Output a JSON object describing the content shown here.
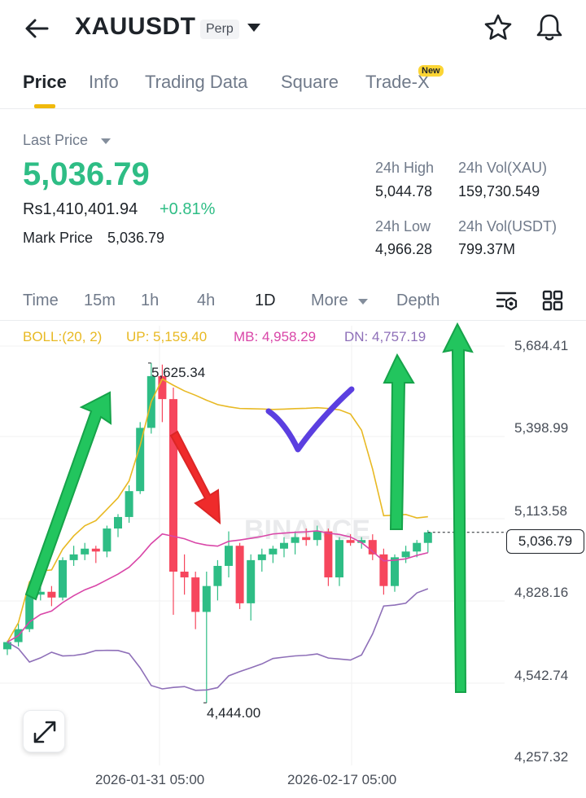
{
  "header": {
    "symbol": "XAUUSDT",
    "badge": "Perp"
  },
  "tabs": [
    {
      "label": "Price"
    },
    {
      "label": "Info"
    },
    {
      "label": "Trading Data"
    },
    {
      "label": "Square"
    },
    {
      "label": "Trade-X",
      "badge": "New"
    }
  ],
  "price": {
    "last_label": "Last Price",
    "last_value": "5,036.79",
    "fiat_value": "Rs1,410,401.94",
    "change_pct": "+0.81%",
    "mark_label": "Mark Price",
    "mark_value": "5,036.79"
  },
  "stats": {
    "high_label": "24h High",
    "high_value": "5,044.78",
    "volxau_label": "24h Vol(XAU)",
    "volxau_value": "159,730.549",
    "low_label": "24h Low",
    "low_value": "4,966.28",
    "volusdt_label": "24h Vol(USDT)",
    "volusdt_value": "799.37M"
  },
  "intervals": [
    {
      "label": "Time"
    },
    {
      "label": "15m"
    },
    {
      "label": "1h"
    },
    {
      "label": "4h"
    },
    {
      "label": "1D"
    },
    {
      "label": "More"
    },
    {
      "label": "Depth"
    }
  ],
  "boll": {
    "name": "BOLL:(20, 2)",
    "up": "UP: 5,159.40",
    "mb": "MB: 4,958.29",
    "dn": "DN: 4,757.19"
  },
  "colors": {
    "up": "#2ebd85",
    "down": "#f6465d",
    "boll_up": "#e8b923",
    "boll_mb": "#d946a8",
    "boll_dn": "#8e6fb8",
    "accent": "#f0b90b"
  },
  "chart_data": {
    "type": "candlestick",
    "y_ticks": [
      "5,684.41",
      "5,398.99",
      "5,113.58",
      "4,828.16",
      "4,542.74",
      "4,257.32"
    ],
    "x_ticks": [
      "2026-01-31 05:00",
      "2026-02-17 05:00"
    ],
    "watermark": "BINANCE",
    "high_label": "5,625.34",
    "low_label": "4,444.00",
    "current_price": "5,036.79",
    "candles": [
      {
        "o": 4630,
        "h": 4660,
        "l": 4610,
        "c": 4655
      },
      {
        "o": 4655,
        "h": 4720,
        "l": 4640,
        "c": 4700
      },
      {
        "o": 4700,
        "h": 4830,
        "l": 4690,
        "c": 4820
      },
      {
        "o": 4820,
        "h": 4900,
        "l": 4800,
        "c": 4830
      },
      {
        "o": 4830,
        "h": 4850,
        "l": 4780,
        "c": 4810
      },
      {
        "o": 4810,
        "h": 4950,
        "l": 4800,
        "c": 4940
      },
      {
        "o": 4940,
        "h": 4990,
        "l": 4920,
        "c": 4960
      },
      {
        "o": 4960,
        "h": 5000,
        "l": 4940,
        "c": 4980
      },
      {
        "o": 4980,
        "h": 4990,
        "l": 4930,
        "c": 4970
      },
      {
        "o": 4970,
        "h": 5060,
        "l": 4950,
        "c": 5050
      },
      {
        "o": 5050,
        "h": 5100,
        "l": 5020,
        "c": 5090
      },
      {
        "o": 5090,
        "h": 5200,
        "l": 5070,
        "c": 5180
      },
      {
        "o": 5180,
        "h": 5420,
        "l": 5170,
        "c": 5400
      },
      {
        "o": 5400,
        "h": 5625.34,
        "l": 5380,
        "c": 5580
      },
      {
        "o": 5580,
        "h": 5620,
        "l": 5420,
        "c": 5500
      },
      {
        "o": 5500,
        "h": 5540,
        "l": 4750,
        "c": 4900
      },
      {
        "o": 4900,
        "h": 4960,
        "l": 4820,
        "c": 4880
      },
      {
        "o": 4880,
        "h": 4900,
        "l": 4700,
        "c": 4760
      },
      {
        "o": 4760,
        "h": 4900,
        "l": 4444,
        "c": 4850
      },
      {
        "o": 4850,
        "h": 4940,
        "l": 4800,
        "c": 4920
      },
      {
        "o": 4920,
        "h": 5040,
        "l": 4880,
        "c": 4990
      },
      {
        "o": 4990,
        "h": 5000,
        "l": 4770,
        "c": 4790
      },
      {
        "o": 4790,
        "h": 4960,
        "l": 4730,
        "c": 4940
      },
      {
        "o": 4940,
        "h": 4980,
        "l": 4900,
        "c": 4960
      },
      {
        "o": 4960,
        "h": 4990,
        "l": 4930,
        "c": 4980
      },
      {
        "o": 4980,
        "h": 5020,
        "l": 4950,
        "c": 5000
      },
      {
        "o": 5000,
        "h": 5040,
        "l": 4960,
        "c": 5020
      },
      {
        "o": 5020,
        "h": 5050,
        "l": 4990,
        "c": 5010
      },
      {
        "o": 5010,
        "h": 5060,
        "l": 4990,
        "c": 5040
      },
      {
        "o": 5040,
        "h": 5050,
        "l": 4850,
        "c": 4880
      },
      {
        "o": 4880,
        "h": 5020,
        "l": 4850,
        "c": 5010
      },
      {
        "o": 5010,
        "h": 5030,
        "l": 4990,
        "c": 5000
      },
      {
        "o": 5000,
        "h": 5020,
        "l": 4980,
        "c": 5010
      },
      {
        "o": 5010,
        "h": 5030,
        "l": 4940,
        "c": 4960
      },
      {
        "o": 4960,
        "h": 4980,
        "l": 4820,
        "c": 4850
      },
      {
        "o": 4850,
        "h": 4960,
        "l": 4830,
        "c": 4950
      },
      {
        "o": 4950,
        "h": 4990,
        "l": 4930,
        "c": 4970
      },
      {
        "o": 4970,
        "h": 5010,
        "l": 4950,
        "c": 5000
      },
      {
        "o": 5000,
        "h": 5044.78,
        "l": 4966.28,
        "c": 5036.79
      }
    ]
  }
}
